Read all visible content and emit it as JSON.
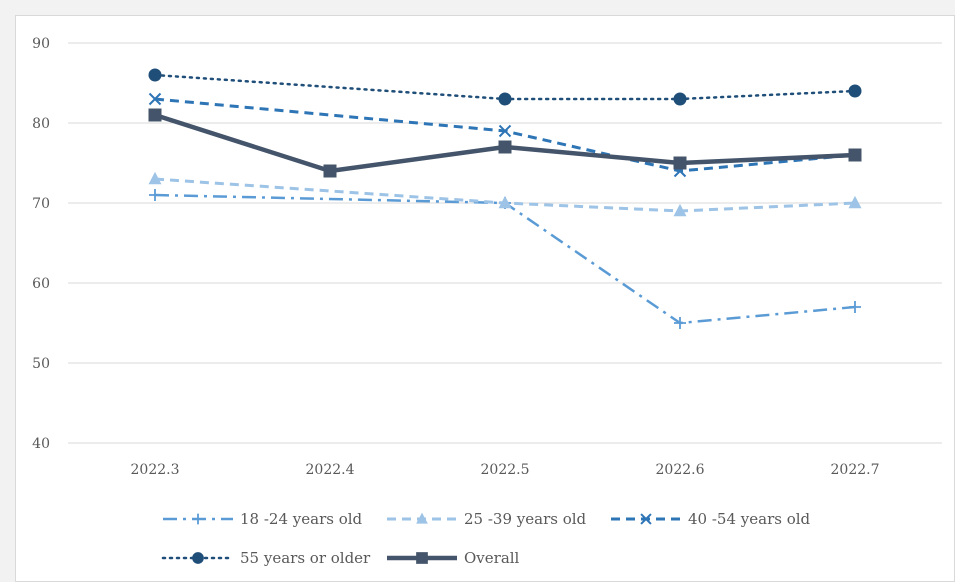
{
  "chart_data": {
    "type": "line",
    "title": "",
    "xlabel": "",
    "ylabel": "",
    "ylim": [
      40,
      90
    ],
    "yticks": [
      40,
      50,
      60,
      70,
      80,
      90
    ],
    "grid": true,
    "legend_position": "bottom",
    "categories": [
      "2022.3",
      "2022.4",
      "2022.5",
      "2022.6",
      "2022.7"
    ],
    "series": [
      {
        "name": "18 -24 years old",
        "values": [
          71,
          null,
          70,
          55,
          57
        ],
        "color": "#5b9bd5",
        "dash": "dashdot",
        "marker": "plus"
      },
      {
        "name": "25 -39 years old",
        "values": [
          73,
          null,
          70,
          69,
          70
        ],
        "color": "#9dc3e6",
        "dash": "dash",
        "marker": "triangle"
      },
      {
        "name": "40 -54 years old",
        "values": [
          83,
          null,
          79,
          74,
          76
        ],
        "color": "#2e75b6",
        "dash": "dash",
        "marker": "x"
      },
      {
        "name": "55 years or older",
        "values": [
          86,
          null,
          83,
          83,
          84
        ],
        "color": "#1f4e79",
        "dash": "dot",
        "marker": "circle"
      },
      {
        "name": "Overall",
        "values": [
          81,
          74,
          77,
          75,
          76
        ],
        "color": "#44546a",
        "dash": "solid",
        "marker": "square"
      }
    ]
  }
}
